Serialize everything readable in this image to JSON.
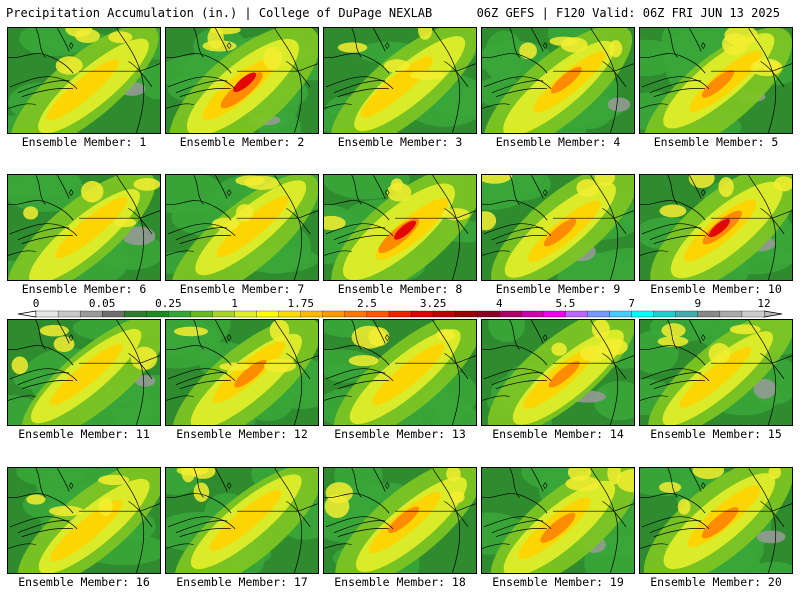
{
  "header": {
    "left": "Precipitation Accumulation (in.) | College of DuPage NEXLAB",
    "right": "06Z GEFS | F120 Valid: 06Z FRI JUN 13 2025"
  },
  "legend": {
    "tick_labels": [
      "0",
      "0.05",
      "0.25",
      "1",
      "1.75",
      "2.5",
      "3.25",
      "4",
      "5.5",
      "7",
      "9",
      "12"
    ],
    "colors": [
      "#e6e6e6",
      "#c8c8c8",
      "#9a9a9a",
      "#6e6e6e",
      "#2e7d2e",
      "#1f8a1f",
      "#34a534",
      "#66bb22",
      "#a6d42a",
      "#e2ee2e",
      "#ffff00",
      "#ffdd00",
      "#ffbb00",
      "#ff9900",
      "#ff7700",
      "#ff5500",
      "#ee2200",
      "#dd0000",
      "#bb0000",
      "#990000",
      "#880022",
      "#aa0066",
      "#cc00aa",
      "#ee00ee",
      "#bb66ff",
      "#7799ff",
      "#44ccff",
      "#00ffff",
      "#22cccc",
      "#44aaaa",
      "#888888",
      "#aaaaaa",
      "#cccccc"
    ]
  },
  "members": [
    {
      "label": "Ensemble Member: 1",
      "intensity": 0.45
    },
    {
      "label": "Ensemble Member: 2",
      "intensity": 0.95
    },
    {
      "label": "Ensemble Member: 3",
      "intensity": 0.5
    },
    {
      "label": "Ensemble Member: 4",
      "intensity": 0.55
    },
    {
      "label": "Ensemble Member: 5",
      "intensity": 0.6
    },
    {
      "label": "Ensemble Member: 6",
      "intensity": 0.45
    },
    {
      "label": "Ensemble Member: 7",
      "intensity": 0.5
    },
    {
      "label": "Ensemble Member: 8",
      "intensity": 0.9
    },
    {
      "label": "Ensemble Member: 9",
      "intensity": 0.6
    },
    {
      "label": "Ensemble Member: 10",
      "intensity": 0.85
    },
    {
      "label": "Ensemble Member: 11",
      "intensity": 0.35
    },
    {
      "label": "Ensemble Member: 12",
      "intensity": 0.6
    },
    {
      "label": "Ensemble Member: 13",
      "intensity": 0.5
    },
    {
      "label": "Ensemble Member: 14",
      "intensity": 0.55
    },
    {
      "label": "Ensemble Member: 15",
      "intensity": 0.35
    },
    {
      "label": "Ensemble Member: 16",
      "intensity": 0.5
    },
    {
      "label": "Ensemble Member: 17",
      "intensity": 0.45
    },
    {
      "label": "Ensemble Member: 18",
      "intensity": 0.55
    },
    {
      "label": "Ensemble Member: 19",
      "intensity": 0.7
    },
    {
      "label": "Ensemble Member: 20",
      "intensity": 0.75
    }
  ]
}
